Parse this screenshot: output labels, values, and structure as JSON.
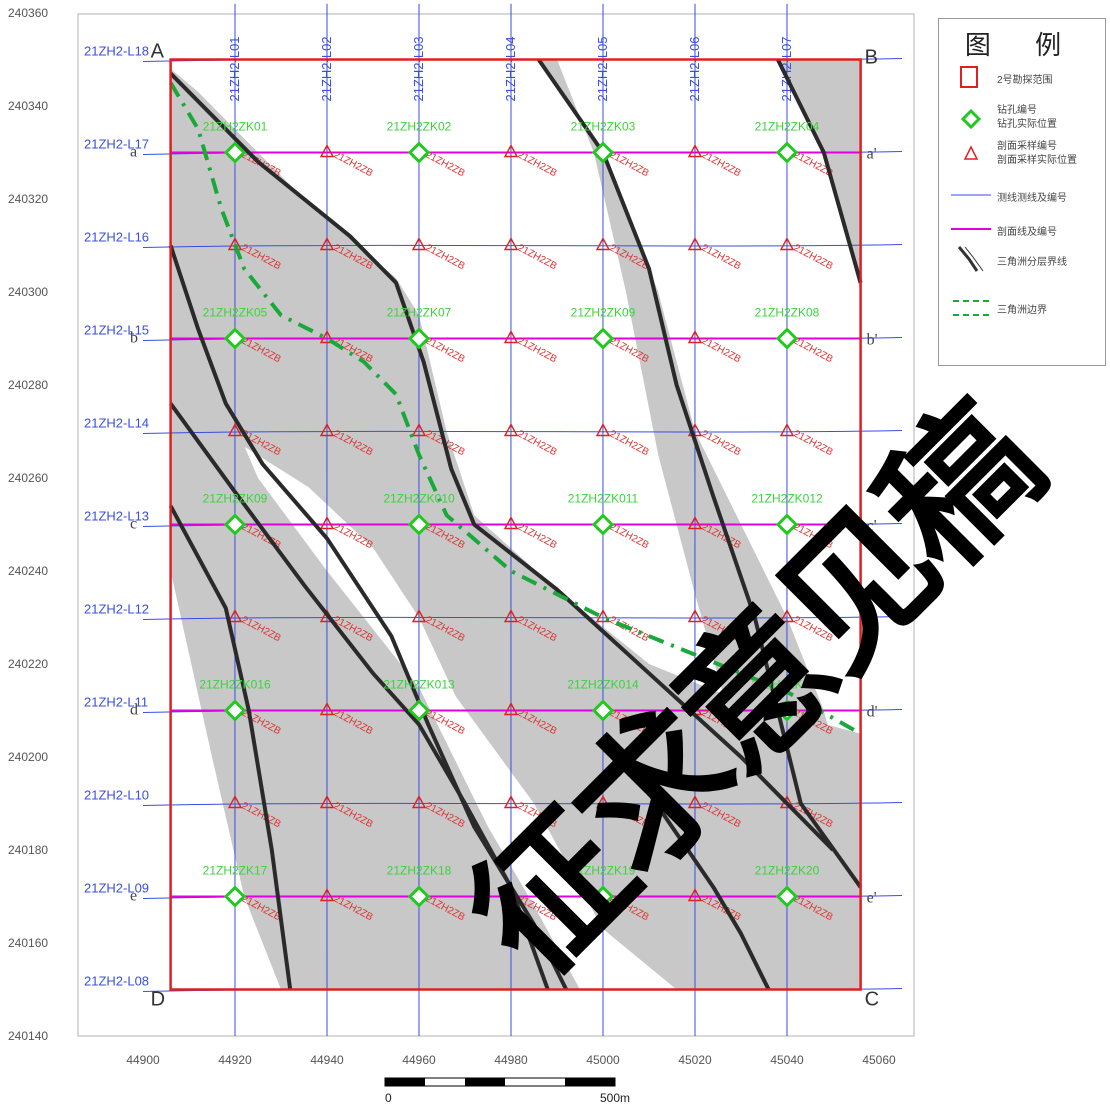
{
  "legend": {
    "title": "图 例",
    "items": [
      {
        "icon": "red-rectangle-icon",
        "label": "2号勘探范围"
      },
      {
        "icon": "green-diamond-icon",
        "label_top": "钻孔编号",
        "label": "钻孔实际位置"
      },
      {
        "icon": "red-triangle-icon",
        "label_top": "剖面采样编号",
        "label": "剖面采样实际位置"
      },
      {
        "icon": "blue-line-icon",
        "label": "测线测线及编号"
      },
      {
        "icon": "magenta-line-icon",
        "label": "剖面线及编号"
      },
      {
        "icon": "black-boundary-icon",
        "label": "三角洲分层界线"
      },
      {
        "icon": "green-dashed-icon",
        "label": "三角洲边界"
      }
    ]
  },
  "axes": {
    "x_ticks": [
      44900,
      44920,
      44940,
      44960,
      44980,
      45000,
      45020,
      45040,
      45060
    ],
    "y_ticks": [
      240140,
      240160,
      240180,
      240200,
      240220,
      240240,
      240260,
      240280,
      240300,
      240320,
      240340,
      240360
    ],
    "x_range": [
      44890,
      45070
    ],
    "y_range": [
      240140,
      240362
    ]
  },
  "corners": {
    "a": "A",
    "b": "B",
    "c": "C",
    "d": "D"
  },
  "boundary": {
    "x_min": 44906,
    "x_max": 45056,
    "y_min": 240150,
    "y_max": 240350
  },
  "survey_lines_x": [
    {
      "label": "21ZH2-L01",
      "x": 44920
    },
    {
      "label": "21ZH2-L02",
      "x": 44940
    },
    {
      "label": "21ZH2-L03",
      "x": 44960
    },
    {
      "label": "21ZH2-L04",
      "x": 44980
    },
    {
      "label": "21ZH2-L05",
      "x": 45000
    },
    {
      "label": "21ZH2-L06",
      "x": 45020
    },
    {
      "label": "21ZH2-L07",
      "x": 45040
    }
  ],
  "survey_lines_y": [
    {
      "label": "21ZH2-L18",
      "y": 240350
    },
    {
      "label": "21ZH2-L17",
      "y": 240330
    },
    {
      "label": "21ZH2-L16",
      "y": 240310
    },
    {
      "label": "21ZH2-L15",
      "y": 240290
    },
    {
      "label": "21ZH2-L14",
      "y": 240270
    },
    {
      "label": "21ZH2-L13",
      "y": 240250
    },
    {
      "label": "21ZH2-L12",
      "y": 240230
    },
    {
      "label": "21ZH2-L11",
      "y": 240210
    },
    {
      "label": "21ZH2-L10",
      "y": 240190
    },
    {
      "label": "21ZH2-L09",
      "y": 240170
    },
    {
      "label": "21ZH2-L08",
      "y": 240150
    }
  ],
  "profiles": [
    {
      "left": "a",
      "right": "a'",
      "y": 240330
    },
    {
      "left": "b",
      "right": "b'",
      "y": 240290
    },
    {
      "left": "c",
      "right": "c'",
      "y": 240250
    },
    {
      "left": "d",
      "right": "d'",
      "y": 240210
    },
    {
      "left": "e",
      "right": "e'",
      "y": 240170
    }
  ],
  "drillholes": [
    {
      "label": "21ZH2ZK01",
      "x": 44920,
      "y": 240330
    },
    {
      "label": "21ZH2ZK02",
      "x": 44960,
      "y": 240330
    },
    {
      "label": "21ZH2ZK03",
      "x": 45000,
      "y": 240330
    },
    {
      "label": "21ZH2ZK04",
      "x": 45040,
      "y": 240330
    },
    {
      "label": "21ZH2ZK05",
      "x": 44920,
      "y": 240290
    },
    {
      "label": "21ZH2ZK07",
      "x": 44960,
      "y": 240290
    },
    {
      "label": "21ZH2ZK09",
      "x": 45000,
      "y": 240290
    },
    {
      "label": "21ZH2ZK08",
      "x": 45040,
      "y": 240290
    },
    {
      "label": "21ZH2ZK09",
      "x": 44920,
      "y": 240250
    },
    {
      "label": "21ZH2ZK010",
      "x": 44960,
      "y": 240250
    },
    {
      "label": "21ZH2ZK011",
      "x": 45000,
      "y": 240250
    },
    {
      "label": "21ZH2ZK012",
      "x": 45040,
      "y": 240250
    },
    {
      "label": "21ZH2ZK016",
      "x": 44920,
      "y": 240210
    },
    {
      "label": "21ZH2ZK013",
      "x": 44960,
      "y": 240210
    },
    {
      "label": "21ZH2ZK014",
      "x": 45000,
      "y": 240210
    },
    {
      "label": "21ZH2ZK015",
      "x": 45040,
      "y": 240210
    },
    {
      "label": "21ZH2ZK17",
      "x": 44920,
      "y": 240170
    },
    {
      "label": "21ZH2ZK18",
      "x": 44960,
      "y": 240170
    },
    {
      "label": "21ZH2ZK19",
      "x": 45000,
      "y": 240170
    },
    {
      "label": "21ZH2ZK20",
      "x": 45040,
      "y": 240170
    }
  ],
  "sample_label": "21ZH2ZB",
  "scale_bar": {
    "zero": "0",
    "end": "500m"
  },
  "watermark": {
    "line1": "征求意见稿"
  }
}
